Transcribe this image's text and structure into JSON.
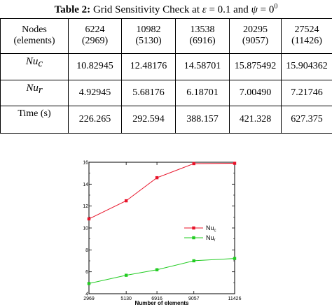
{
  "table": {
    "caption_label": "Table 2:",
    "caption_prefix": " Grid Sensitivity Check at ",
    "caption_eps_symbol": "ε",
    "caption_eps_value": " = 0.1 and ",
    "caption_psi_symbol": "ψ",
    "caption_psi_value": " = 0",
    "caption_psi_exp": "0",
    "header": {
      "label_line1": "Nodes",
      "label_line2": "(elements)",
      "columns": [
        {
          "nodes": "6224",
          "elements": "(2969)"
        },
        {
          "nodes": "10982",
          "elements": "(5130)"
        },
        {
          "nodes": "13538",
          "elements": "(6916)"
        },
        {
          "nodes": "20295",
          "elements": "(9057)"
        },
        {
          "nodes": "27524",
          "elements": "(11426)"
        }
      ]
    },
    "rows": [
      {
        "symbol": "Nu",
        "sub": "c",
        "values": [
          "10.82945",
          "12.48176",
          "14.58701",
          "15.875492",
          "15.904362"
        ]
      },
      {
        "symbol": "Nu",
        "sub": "r",
        "values": [
          "4.92945",
          "5.68176",
          "6.18701",
          "7.00490",
          "7.21746"
        ]
      },
      {
        "symbol": "Time (s)",
        "sub": "",
        "values": [
          "226.265",
          "292.594",
          "388.157",
          "421.328",
          "627.375"
        ]
      }
    ]
  },
  "chart_data": {
    "type": "line",
    "x": [
      2969,
      5130,
      6916,
      9057,
      11426
    ],
    "x_tick_labels": [
      "2969",
      "5130",
      "6916",
      "9057",
      "11426"
    ],
    "xlabel": "Number of elements",
    "ylim": [
      4,
      16
    ],
    "y_ticks": [
      4,
      6,
      8,
      10,
      12,
      14,
      16
    ],
    "series": [
      {
        "name": "Nu",
        "name_sub": "c",
        "color": "#e8142a",
        "marker": "square",
        "values": [
          10.82945,
          12.48176,
          14.58701,
          15.875492,
          15.904362
        ]
      },
      {
        "name": "Nu",
        "name_sub": "r",
        "color": "#22cc22",
        "marker": "square",
        "values": [
          4.92945,
          5.68176,
          6.18701,
          7.0049,
          7.21746
        ]
      }
    ],
    "legend_position": "right",
    "grid": false
  }
}
